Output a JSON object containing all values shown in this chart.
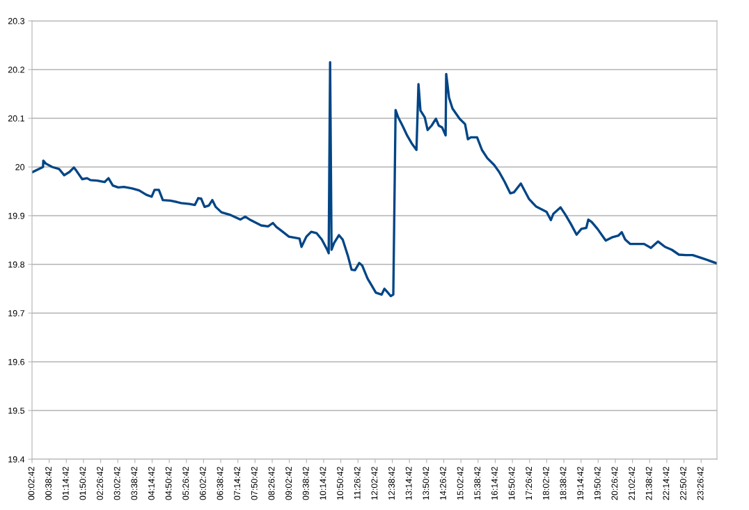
{
  "chart_data": {
    "type": "line",
    "xlim": [
      0.045,
      24.0
    ],
    "ylim": [
      19.4,
      20.3
    ],
    "yticks": [
      19.4,
      19.5,
      19.6,
      19.7,
      19.8,
      19.9,
      20,
      20.1,
      20.2,
      20.3
    ],
    "xticks": [
      {
        "value": 0.045,
        "label": "00:02:42"
      },
      {
        "value": 0.645,
        "label": "00:38:42"
      },
      {
        "value": 1.245,
        "label": "01:14:42"
      },
      {
        "value": 1.845,
        "label": "01:50:42"
      },
      {
        "value": 2.445,
        "label": "02:26:42"
      },
      {
        "value": 3.045,
        "label": "03:02:42"
      },
      {
        "value": 3.645,
        "label": "03:38:42"
      },
      {
        "value": 4.245,
        "label": "04:14:42"
      },
      {
        "value": 4.845,
        "label": "04:50:42"
      },
      {
        "value": 5.445,
        "label": "05:26:42"
      },
      {
        "value": 6.045,
        "label": "06:02:42"
      },
      {
        "value": 6.645,
        "label": "06:38:42"
      },
      {
        "value": 7.245,
        "label": "07:14:42"
      },
      {
        "value": 7.845,
        "label": "07:50:42"
      },
      {
        "value": 8.445,
        "label": "08:26:42"
      },
      {
        "value": 9.045,
        "label": "09:02:42"
      },
      {
        "value": 9.645,
        "label": "09:38:42"
      },
      {
        "value": 10.245,
        "label": "10:14:42"
      },
      {
        "value": 10.845,
        "label": "10:50:42"
      },
      {
        "value": 11.445,
        "label": "11:26:42"
      },
      {
        "value": 12.045,
        "label": "12:02:42"
      },
      {
        "value": 12.645,
        "label": "12:38:42"
      },
      {
        "value": 13.245,
        "label": "13:14:42"
      },
      {
        "value": 13.845,
        "label": "13:50:42"
      },
      {
        "value": 14.445,
        "label": "14:26:42"
      },
      {
        "value": 15.045,
        "label": "15:02:42"
      },
      {
        "value": 15.645,
        "label": "15:38:42"
      },
      {
        "value": 16.245,
        "label": "16:14:42"
      },
      {
        "value": 16.845,
        "label": "16:50:42"
      },
      {
        "value": 17.445,
        "label": "17:26:42"
      },
      {
        "value": 18.045,
        "label": "18:02:42"
      },
      {
        "value": 18.645,
        "label": "18:38:42"
      },
      {
        "value": 19.245,
        "label": "19:14:42"
      },
      {
        "value": 19.845,
        "label": "19:50:42"
      },
      {
        "value": 20.445,
        "label": "20:26:42"
      },
      {
        "value": 21.045,
        "label": "21:02:42"
      },
      {
        "value": 21.645,
        "label": "21:38:42"
      },
      {
        "value": 22.245,
        "label": "22:14:42"
      },
      {
        "value": 22.845,
        "label": "22:50:42"
      },
      {
        "value": 23.445,
        "label": "23:26:42"
      }
    ],
    "grid": "y",
    "legend": false,
    "marker": "none",
    "line_style": "solid",
    "series": [
      {
        "color": "#004586",
        "x": [
          0.045,
          0.43,
          0.44,
          0.53,
          0.75,
          0.99,
          1.17,
          1.36,
          1.51,
          1.6,
          1.8,
          1.97,
          2.09,
          2.33,
          2.58,
          2.72,
          2.87,
          3.06,
          3.26,
          3.55,
          3.79,
          4.04,
          4.23,
          4.33,
          4.48,
          4.62,
          4.89,
          5.26,
          5.55,
          5.74,
          5.86,
          5.96,
          6.08,
          6.23,
          6.35,
          6.47,
          6.67,
          6.96,
          7.33,
          7.5,
          7.69,
          8.06,
          8.3,
          8.47,
          8.59,
          8.79,
          9.03,
          9.4,
          9.47,
          9.64,
          9.81,
          10.0,
          10.18,
          10.37,
          10.42,
          10.47,
          10.52,
          10.61,
          10.78,
          10.91,
          11.1,
          11.22,
          11.34,
          11.49,
          11.59,
          11.78,
          11.9,
          12.07,
          12.27,
          12.37,
          12.46,
          12.59,
          12.68,
          12.76,
          12.85,
          13.0,
          13.17,
          13.34,
          13.49,
          13.56,
          13.63,
          13.78,
          13.88,
          14.02,
          14.17,
          14.27,
          14.39,
          14.51,
          14.53,
          14.63,
          14.75,
          15.0,
          15.19,
          15.29,
          15.39,
          15.61,
          15.78,
          15.97,
          16.21,
          16.38,
          16.58,
          16.77,
          16.9,
          17.14,
          17.24,
          17.43,
          17.67,
          18.04,
          18.19,
          18.28,
          18.53,
          18.7,
          18.89,
          19.09,
          19.26,
          19.43,
          19.5,
          19.62,
          19.82,
          20.11,
          20.35,
          20.55,
          20.67,
          20.79,
          20.96,
          21.21,
          21.45,
          21.69,
          21.94,
          22.18,
          22.42,
          22.67,
          22.91,
          23.15,
          23.52,
          24.0
        ],
        "values": [
          19.989,
          20.0,
          20.013,
          20.007,
          20.0,
          19.996,
          19.983,
          19.99,
          19.999,
          19.992,
          19.975,
          19.977,
          19.973,
          19.972,
          19.969,
          19.977,
          19.962,
          19.958,
          19.959,
          19.956,
          19.952,
          19.943,
          19.939,
          19.953,
          19.953,
          19.932,
          19.931,
          19.926,
          19.924,
          19.922,
          19.936,
          19.935,
          19.918,
          19.921,
          19.932,
          19.918,
          19.907,
          19.902,
          19.892,
          19.898,
          19.891,
          19.88,
          19.878,
          19.885,
          19.877,
          19.868,
          19.857,
          19.853,
          19.836,
          19.857,
          19.867,
          19.864,
          19.851,
          19.83,
          19.823,
          20.215,
          19.83,
          19.844,
          19.86,
          19.851,
          19.816,
          19.789,
          19.788,
          19.803,
          19.798,
          19.771,
          19.759,
          19.742,
          19.738,
          19.75,
          19.744,
          19.735,
          19.738,
          20.117,
          20.102,
          20.085,
          20.064,
          20.047,
          20.035,
          20.17,
          20.116,
          20.102,
          20.076,
          20.085,
          20.099,
          20.085,
          20.081,
          20.065,
          20.191,
          20.142,
          20.12,
          20.099,
          20.088,
          20.057,
          20.061,
          20.061,
          20.035,
          20.018,
          20.004,
          19.99,
          19.969,
          19.946,
          19.948,
          19.966,
          19.955,
          19.934,
          19.919,
          19.908,
          19.891,
          19.904,
          19.917,
          19.902,
          19.883,
          19.861,
          19.873,
          19.875,
          19.892,
          19.887,
          19.873,
          19.849,
          19.856,
          19.859,
          19.866,
          19.851,
          19.842,
          19.842,
          19.842,
          19.834,
          19.847,
          19.836,
          19.83,
          19.82,
          19.819,
          19.819,
          19.812,
          19.802
        ]
      }
    ]
  }
}
